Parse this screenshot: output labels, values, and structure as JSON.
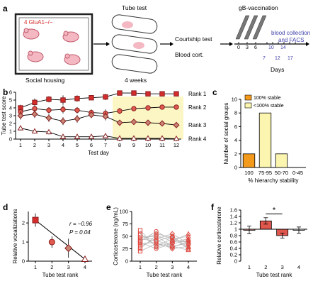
{
  "panel_a": {
    "letter": "a",
    "mouse_label": "4 GluA1−/−",
    "housing_label": "Social housing",
    "tube_title": "Tube test",
    "tube_weeks": "4 weeks",
    "courtship": "Courtship test",
    "blood_cort": "Blood cort.",
    "vaccination": "gB-vaccination",
    "vacc_days": [
      "0",
      "3",
      "6"
    ],
    "bleed_days_top": [
      "10",
      "14"
    ],
    "bleed_days_bottom": [
      "7",
      "12",
      "17"
    ],
    "blood_label_1": "blood collection",
    "blood_label_2": "and FACS",
    "days_label": "Days"
  },
  "chart_data": [
    {
      "panel": "b",
      "type": "line",
      "x": [
        1,
        2,
        3,
        4,
        5,
        6,
        7,
        8,
        9,
        10,
        11,
        12
      ],
      "xlabel": "Test day",
      "ylabel": "Tube test score",
      "ylim": [
        0,
        6
      ],
      "yticks": [
        "0",
        "1",
        "2",
        "3",
        "4",
        "5",
        "6"
      ],
      "highlight_x_range": [
        7.5,
        12.5
      ],
      "highlight_color": "#fbf6c4",
      "series": [
        {
          "name": "Rank 1",
          "marker": "square",
          "color": "#d62c2c",
          "values": [
            4.0,
            4.7,
            5.1,
            5.0,
            5.2,
            5.3,
            5.4,
            5.9,
            5.9,
            5.8,
            5.8,
            5.8
          ],
          "err": [
            0.4,
            0.5,
            0.4,
            0.6,
            0.4,
            0.3,
            0.4,
            0.2,
            0.2,
            0.2,
            0.2,
            0.2
          ]
        },
        {
          "name": "Rank 2",
          "marker": "circle",
          "color": "#e05a4f",
          "values": [
            3.5,
            3.9,
            3.7,
            3.8,
            3.7,
            3.4,
            3.3,
            3.6,
            3.9,
            4.0,
            4.1,
            4.1
          ],
          "err": [
            0.4,
            0.4,
            0.4,
            0.5,
            0.4,
            0.4,
            0.5,
            0.4,
            0.3,
            0.3,
            0.3,
            0.3
          ]
        },
        {
          "name": "Rank 3",
          "marker": "diamond",
          "color": "#c98575",
          "values": [
            3.0,
            3.2,
            2.7,
            2.3,
            2.6,
            3.1,
            2.9,
            2.1,
            2.2,
            2.1,
            2.0,
            1.8
          ],
          "err": [
            0.5,
            0.5,
            0.5,
            0.5,
            0.5,
            0.4,
            0.5,
            0.3,
            0.2,
            0.2,
            0.2,
            0.2
          ]
        },
        {
          "name": "Rank 4",
          "marker": "triangle",
          "color": "#ffffff",
          "values": [
            1.4,
            1.0,
            0.9,
            0.3,
            0.3,
            0.3,
            0.4,
            0.1,
            0.1,
            0.1,
            0.1,
            0.05
          ],
          "err": [
            0.3,
            0.3,
            0.3,
            0.2,
            0.2,
            0.2,
            0.2,
            0.1,
            0.1,
            0.1,
            0.1,
            0.05
          ]
        }
      ]
    },
    {
      "panel": "c",
      "type": "bar",
      "categories": [
        "100",
        "75-95",
        "50-70",
        "0-45"
      ],
      "values": [
        2,
        8,
        2,
        0
      ],
      "colors": [
        "#f39a1c",
        "#fbf5b0",
        "#fbf5b0",
        "#fbf5b0"
      ],
      "xlabel": "% hierarchy stability",
      "ylabel": "Number of social groups",
      "ylim": [
        0,
        10
      ],
      "yticks": [
        "0",
        "2",
        "4",
        "6",
        "8",
        "10"
      ],
      "legend": [
        {
          "label": "100% stable",
          "color": "#f39a1c"
        },
        {
          "label": "<100% stable",
          "color": "#fbf5b0"
        }
      ],
      "legend_position": "top"
    },
    {
      "panel": "d",
      "type": "scatter",
      "x": [
        1,
        2,
        3,
        4
      ],
      "y": [
        2.15,
        1.0,
        0.68,
        0.1
      ],
      "err": [
        0.35,
        0.3,
        0.5,
        0.05
      ],
      "markers": [
        "square",
        "circle",
        "diamond",
        "triangle"
      ],
      "fit_line": true,
      "xlabel": "Tube test rank",
      "ylabel": "Relative vocalizations",
      "xticks": [
        "1",
        "2",
        "3",
        "4"
      ],
      "yticks": [
        "0",
        "1",
        "2"
      ],
      "ylim": [
        0,
        2.6
      ],
      "annotation_r": "r = −0.96",
      "annotation_p": "P = 0.04"
    },
    {
      "panel": "e",
      "type": "line",
      "x": [
        1,
        2,
        3,
        4
      ],
      "xlabel": "Tube test rank",
      "ylabel": "Corticosterone (ng/mL)",
      "xticks": [
        "1",
        "2",
        "3",
        "4"
      ],
      "yticks": [
        "0",
        "25",
        "50",
        "75",
        "100"
      ],
      "ylim": [
        0,
        100
      ],
      "series": [
        {
          "values": [
            40,
            60,
            42,
            38
          ]
        },
        {
          "values": [
            55,
            30,
            45,
            50
          ]
        },
        {
          "values": [
            20,
            35,
            28,
            40
          ]
        },
        {
          "values": [
            48,
            50,
            30,
            22
          ]
        },
        {
          "values": [
            30,
            45,
            55,
            35
          ]
        },
        {
          "values": [
            62,
            28,
            38,
            45
          ]
        },
        {
          "values": [
            35,
            38,
            25,
            30
          ]
        },
        {
          "values": [
            25,
            52,
            40,
            55
          ]
        },
        {
          "values": [
            45,
            40,
            50,
            28
          ]
        },
        {
          "values": [
            38,
            25,
            35,
            42
          ]
        },
        {
          "values": [
            52,
            42,
            30,
            36
          ]
        },
        {
          "values": [
            42,
            55,
            48,
            25
          ]
        }
      ]
    },
    {
      "panel": "f",
      "type": "bar",
      "categories": [
        "1",
        "2",
        "3",
        "4"
      ],
      "values": [
        0.98,
        1.26,
        0.8,
        0.97
      ],
      "err": [
        0.12,
        0.1,
        0.08,
        0.1
      ],
      "colors": [
        "#f29c91",
        "#e0574d",
        "#e0574d",
        "#ffffff"
      ],
      "xlabel": "Tube test rank",
      "ylabel": "Relative corticosterone",
      "ylim": [
        0,
        1.6
      ],
      "yticks": [
        "0",
        "0.2",
        "0.4",
        "0.6",
        "0.8",
        "1",
        "1.2",
        "1.4",
        "1.6"
      ],
      "significance": "*"
    }
  ]
}
